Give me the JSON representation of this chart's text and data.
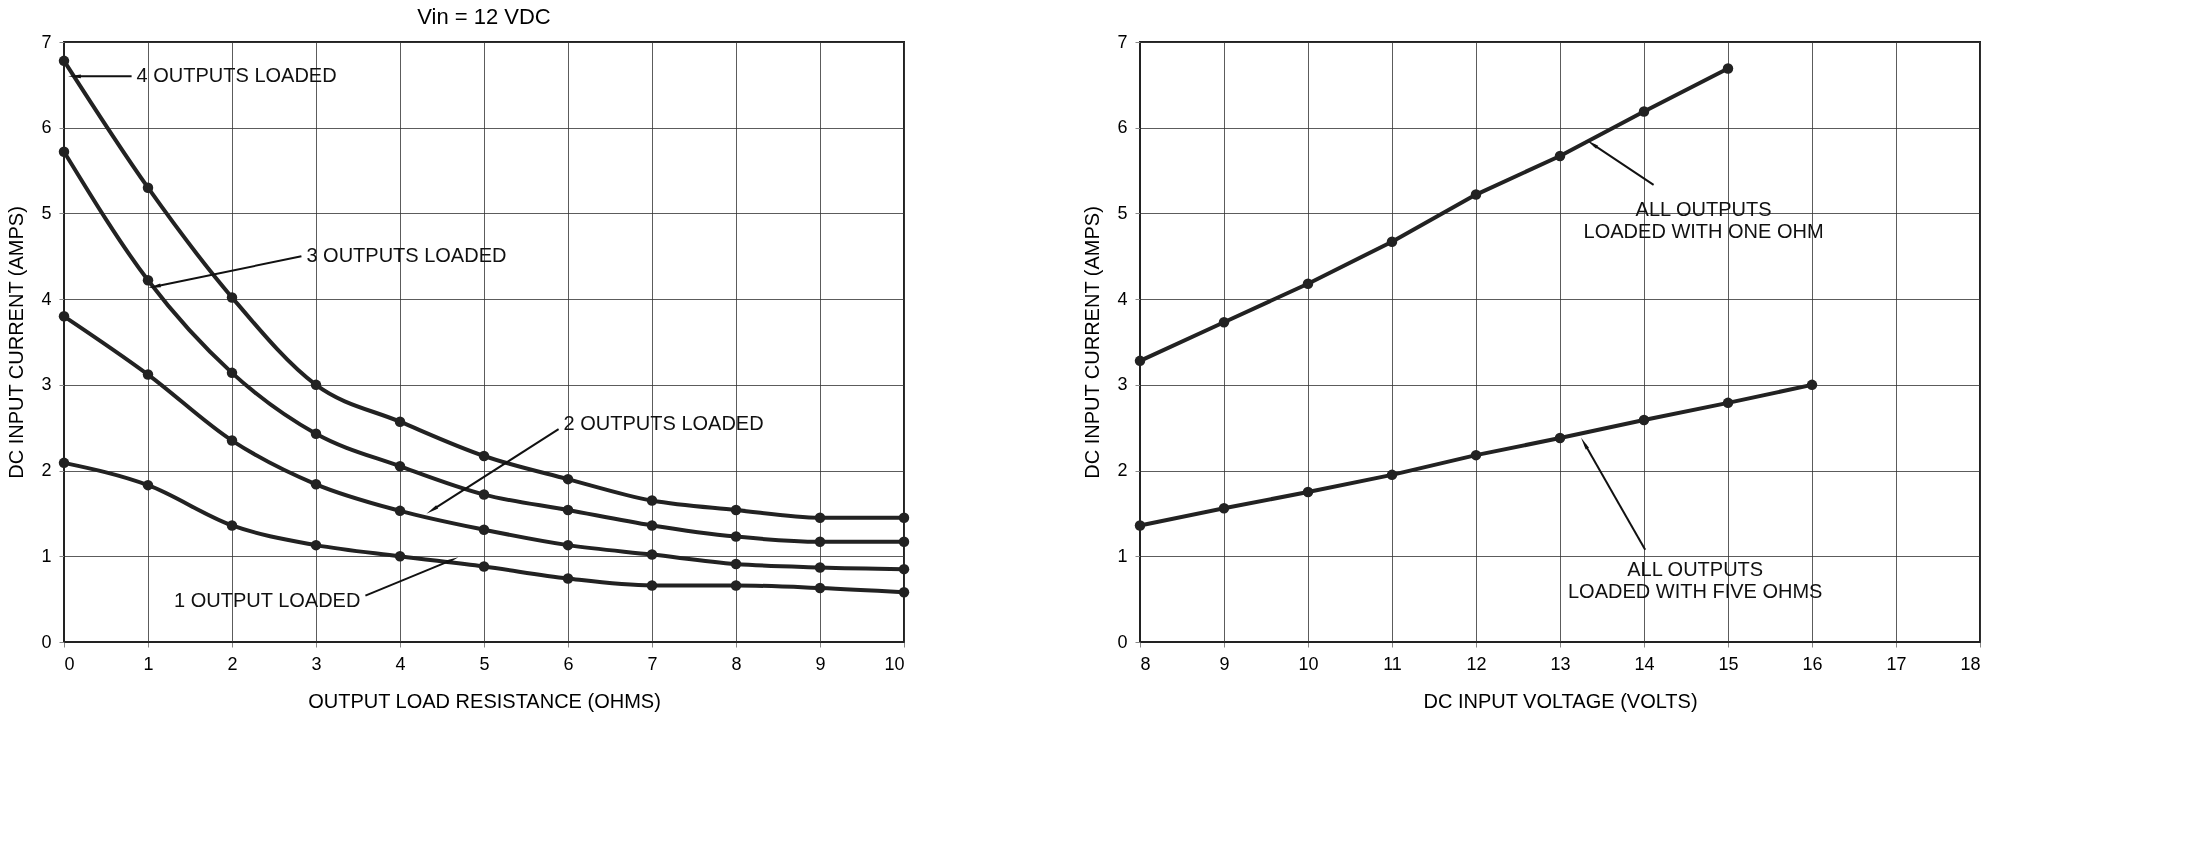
{
  "chart_data": [
    {
      "type": "line",
      "title": "Vin = 12 VDC",
      "xlabel": "OUTPUT LOAD RESISTANCE (OHMS)",
      "ylabel": "DC INPUT CURRENT (AMPS)",
      "x": [
        0,
        1,
        2,
        3,
        4,
        5,
        6,
        7,
        8,
        9,
        10
      ],
      "series": [
        {
          "color": "#222222",
          "values": [
            6.78,
            5.3,
            4.02,
            3.0,
            2.57,
            2.17,
            1.9,
            1.65,
            1.54,
            1.45,
            1.45
          ]
        },
        {
          "color": "#222222",
          "values": [
            5.72,
            4.22,
            3.14,
            2.43,
            2.05,
            1.72,
            1.54,
            1.36,
            1.23,
            1.17,
            1.17
          ]
        },
        {
          "color": "#222222",
          "values": [
            3.8,
            3.12,
            2.35,
            1.84,
            1.53,
            1.31,
            1.13,
            1.02,
            0.91,
            0.87,
            0.85
          ]
        },
        {
          "color": "#222222",
          "values": [
            2.09,
            1.83,
            1.36,
            1.13,
            1.0,
            0.88,
            0.74,
            0.66,
            0.66,
            0.63,
            0.58
          ]
        }
      ],
      "xlim": [
        0,
        10
      ],
      "xticks": [
        0,
        1,
        2,
        3,
        4,
        5,
        6,
        7,
        8,
        9,
        10
      ],
      "ylim": [
        0,
        7
      ],
      "yticks": [
        0,
        1,
        2,
        3,
        4,
        5,
        6,
        7
      ],
      "grid": true,
      "legend": false,
      "marker": "circle",
      "line_style": "solid",
      "annotations": [
        {
          "text": "4 OUTPUTS LOADED",
          "x": 0.15,
          "y": 6.6
        },
        {
          "text": "3 OUTPUTS LOADED",
          "x": 1.1,
          "y": 4.15
        },
        {
          "text": "2 OUTPUTS LOADED",
          "x": 4.4,
          "y": 1.55
        },
        {
          "text": "1 OUTPUT LOADED",
          "x": 4.6,
          "y": 0.95
        }
      ]
    },
    {
      "type": "line",
      "xlabel": "DC INPUT VOLTAGE (VOLTS)",
      "ylabel": "DC INPUT CURRENT (AMPS)",
      "series": [
        {
          "color": "#222222",
          "x": [
            8,
            9,
            10,
            11,
            12,
            13,
            14,
            15
          ],
          "values": [
            3.28,
            3.73,
            4.18,
            4.67,
            5.22,
            5.67,
            6.19,
            6.69
          ]
        },
        {
          "color": "#222222",
          "x": [
            8,
            9,
            10,
            11,
            12,
            13,
            14,
            15,
            16
          ],
          "values": [
            1.36,
            1.56,
            1.75,
            1.95,
            2.18,
            2.38,
            2.59,
            2.79,
            3.0
          ]
        }
      ],
      "xlim": [
        8,
        18
      ],
      "xticks": [
        8,
        9,
        10,
        11,
        12,
        13,
        14,
        15,
        16,
        17,
        18
      ],
      "ylim": [
        0,
        7
      ],
      "yticks": [
        0,
        1,
        2,
        3,
        4,
        5,
        6,
        7
      ],
      "grid": true,
      "legend": false,
      "marker": "circle",
      "line_style": "solid",
      "annotations": [
        {
          "text": "ALL OUTPUTS\nLOADED WITH ONE OHM",
          "x": 13.4,
          "y": 5.8
        },
        {
          "text": "ALL OUTPUTS\nLOADED WITH FIVE OHMS",
          "x": 13.3,
          "y": 2.3
        }
      ]
    }
  ]
}
